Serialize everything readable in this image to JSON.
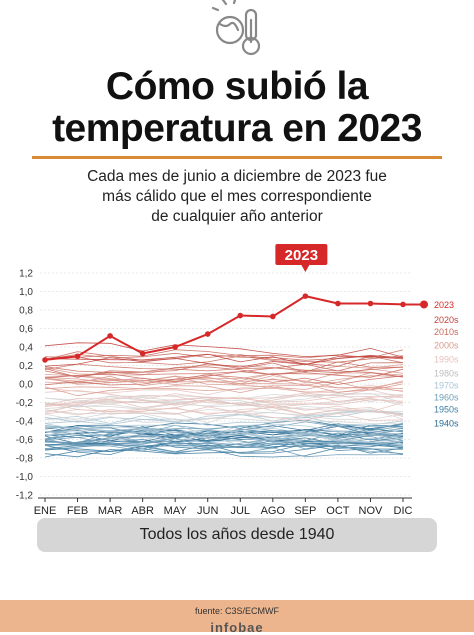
{
  "header": {
    "icon": "thermometer-earth-icon",
    "title_line1": "Cómo subió la",
    "title_line2": "temperatura en 2023",
    "subtitle_line1": "Cada mes de junio a diciembre de 2023 fue",
    "subtitle_line2": "más cálido que el mes correspondiente",
    "subtitle_line3": "de cualquier año anterior"
  },
  "chart_data": {
    "type": "line",
    "categories": [
      "ENE",
      "FEB",
      "MAR",
      "ABR",
      "MAY",
      "JUN",
      "JUL",
      "AGO",
      "SEP",
      "OCT",
      "NOV",
      "DIC"
    ],
    "ylim": [
      -1.2,
      1.2
    ],
    "yticks": [
      "-1,2",
      "-1,0",
      "-0,8",
      "-0,6",
      "-0,4",
      "-0,2",
      "0,0",
      "0,2",
      "0,4",
      "0,6",
      "0,8",
      "1,0",
      "1,2"
    ],
    "grid": true,
    "highlight": {
      "name": "2023",
      "label": "2023",
      "color": "#d62828",
      "values": [
        0.26,
        0.3,
        0.52,
        0.33,
        0.4,
        0.54,
        0.74,
        0.73,
        0.95,
        0.87,
        0.87,
        0.86
      ]
    },
    "legend": [
      {
        "label": "2023",
        "color": "#d62828"
      },
      {
        "label": "2020s",
        "color": "#c0423c"
      },
      {
        "label": "2010s",
        "color": "#c96a5e"
      },
      {
        "label": "2000s",
        "color": "#d99a8f"
      },
      {
        "label": "1990s",
        "color": "#e6c2bc"
      },
      {
        "label": "1980s",
        "color": "#e3e3e3"
      },
      {
        "label": "1970s",
        "color": "#a9c4d4"
      },
      {
        "label": "1960s",
        "color": "#6f9db8"
      },
      {
        "label": "1950s",
        "color": "#3f7ea3"
      },
      {
        "label": "1940s",
        "color": "#2a6a94"
      }
    ],
    "decades": [
      {
        "name": "2020s",
        "color": "#c0423c",
        "years": 3,
        "base": 0.32,
        "spread": 0.1
      },
      {
        "name": "2010s",
        "color": "#c96a5e",
        "years": 10,
        "base": 0.18,
        "spread": 0.14
      },
      {
        "name": "2000s",
        "color": "#d99a8f",
        "years": 10,
        "base": 0.02,
        "spread": 0.12
      },
      {
        "name": "1990s",
        "color": "#e6c2bc",
        "years": 10,
        "base": -0.16,
        "spread": 0.12
      },
      {
        "name": "1980s",
        "color": "#d4d4d4",
        "years": 10,
        "base": -0.3,
        "spread": 0.12
      },
      {
        "name": "1970s",
        "color": "#a9c4d4",
        "years": 10,
        "base": -0.47,
        "spread": 0.12
      },
      {
        "name": "1960s",
        "color": "#6f9db8",
        "years": 10,
        "base": -0.56,
        "spread": 0.12
      },
      {
        "name": "1950s",
        "color": "#3f7ea3",
        "years": 10,
        "base": -0.64,
        "spread": 0.13
      },
      {
        "name": "1940s",
        "color": "#2a6a94",
        "years": 10,
        "base": -0.58,
        "spread": 0.14
      }
    ]
  },
  "caption": "Todos los años desde 1940",
  "source": "fuente: C3S/ECMWF",
  "brand": "infobae"
}
